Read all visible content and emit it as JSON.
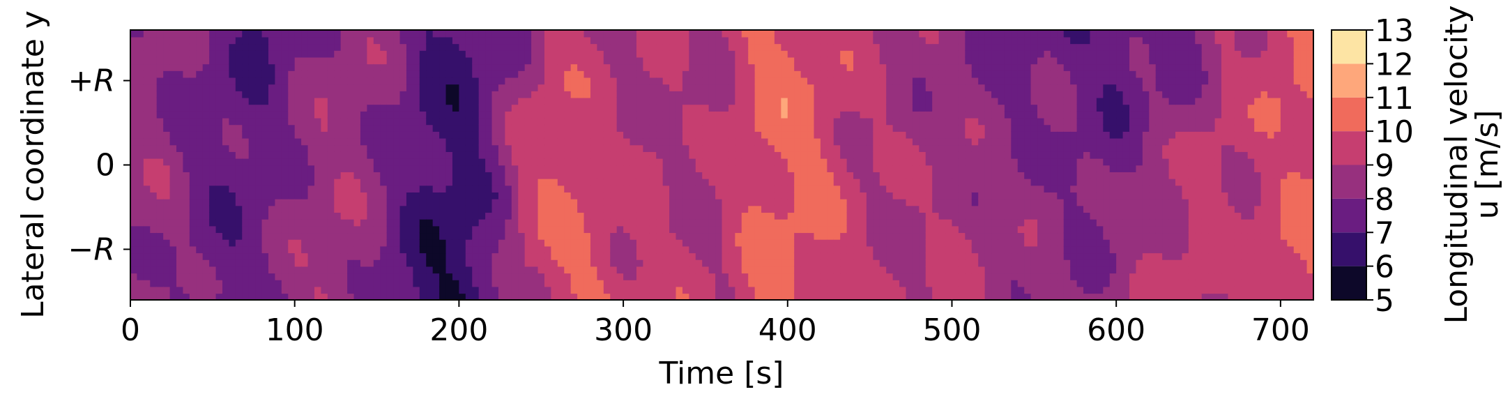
{
  "chart_data": {
    "type": "heatmap",
    "xlabel": "Time [s]",
    "ylabel": "Lateral coordinate y",
    "xlim": [
      0,
      720
    ],
    "xticks": [
      0,
      100,
      200,
      300,
      400,
      500,
      600,
      700
    ],
    "ytick_labels": [
      "+R",
      "0",
      "−R"
    ],
    "ytick_values": [
      1,
      0,
      -1
    ],
    "ylim": [
      -1.6,
      1.6
    ],
    "colorbar": {
      "label_line1": "Longitudinal velocity",
      "label_line2": "u [m/s]",
      "levels": [
        5,
        6,
        7,
        8,
        9,
        10,
        11,
        12,
        13
      ],
      "colors": [
        "#0d0829",
        "#36106b",
        "#6a1d81",
        "#97307e",
        "#c63e70",
        "#f06b5c",
        "#fea77b",
        "#fde4a4"
      ]
    },
    "columns": [
      {
        "t": 0,
        "top": 8.4,
        "mid": 8.6,
        "bot": 8.1
      },
      {
        "t": 20,
        "top": 8.2,
        "mid": 8.5,
        "bot": 8.3
      },
      {
        "t": 40,
        "top": 7.8,
        "mid": 7.6,
        "bot": 7.7
      },
      {
        "t": 60,
        "top": 7.5,
        "mid": 7.4,
        "bot": 7.2
      },
      {
        "t": 80,
        "top": 6.8,
        "mid": 7.5,
        "bot": 7.8
      },
      {
        "t": 100,
        "top": 7.6,
        "mid": 8.2,
        "bot": 8.5
      },
      {
        "t": 120,
        "top": 8.3,
        "mid": 8.8,
        "bot": 9.2
      },
      {
        "t": 140,
        "top": 8.7,
        "mid": 8.5,
        "bot": 8.4
      },
      {
        "t": 160,
        "top": 8.2,
        "mid": 7.8,
        "bot": 7.4
      },
      {
        "t": 180,
        "top": 7.1,
        "mid": 6.8,
        "bot": 6.2
      },
      {
        "t": 200,
        "top": 6.5,
        "mid": 6.6,
        "bot": 5.9
      },
      {
        "t": 220,
        "top": 7.4,
        "mid": 7.6,
        "bot": 7.3
      },
      {
        "t": 240,
        "top": 8.3,
        "mid": 9.6,
        "bot": 9.1
      },
      {
        "t": 260,
        "top": 9.4,
        "mid": 10.2,
        "bot": 9.8
      },
      {
        "t": 280,
        "top": 9.1,
        "mid": 9.5,
        "bot": 10.3
      },
      {
        "t": 300,
        "top": 8.8,
        "mid": 9.0,
        "bot": 9.6
      },
      {
        "t": 320,
        "top": 8.7,
        "mid": 9.2,
        "bot": 9.4
      },
      {
        "t": 340,
        "top": 9.0,
        "mid": 8.6,
        "bot": 9.3
      },
      {
        "t": 360,
        "top": 8.9,
        "mid": 9.1,
        "bot": 9.0
      },
      {
        "t": 380,
        "top": 10.1,
        "mid": 10.0,
        "bot": 10.2
      },
      {
        "t": 400,
        "top": 10.4,
        "mid": 10.3,
        "bot": 10.1
      },
      {
        "t": 420,
        "top": 9.8,
        "mid": 10.2,
        "bot": 9.9
      },
      {
        "t": 440,
        "top": 9.3,
        "mid": 9.1,
        "bot": 9.5
      },
      {
        "t": 460,
        "top": 8.8,
        "mid": 8.9,
        "bot": 9.2
      },
      {
        "t": 480,
        "top": 8.5,
        "mid": 8.7,
        "bot": 8.9
      },
      {
        "t": 500,
        "top": 8.2,
        "mid": 8.9,
        "bot": 9.3
      },
      {
        "t": 520,
        "top": 7.8,
        "mid": 8.4,
        "bot": 9.0
      },
      {
        "t": 540,
        "top": 7.4,
        "mid": 8.1,
        "bot": 8.6
      },
      {
        "t": 560,
        "top": 7.6,
        "mid": 8.3,
        "bot": 8.4
      },
      {
        "t": 580,
        "top": 7.3,
        "mid": 7.8,
        "bot": 8.2
      },
      {
        "t": 600,
        "top": 7.0,
        "mid": 7.6,
        "bot": 8.6
      },
      {
        "t": 620,
        "top": 7.5,
        "mid": 8.4,
        "bot": 9.1
      },
      {
        "t": 640,
        "top": 7.2,
        "mid": 8.8,
        "bot": 9.6
      },
      {
        "t": 660,
        "top": 8.6,
        "mid": 9.4,
        "bot": 9.2
      },
      {
        "t": 680,
        "top": 9.1,
        "mid": 9.3,
        "bot": 8.9
      },
      {
        "t": 700,
        "top": 10.3,
        "mid": 9.6,
        "bot": 10.4
      },
      {
        "t": 720,
        "top": 10.2,
        "mid": 10.0,
        "bot": 10.3
      }
    ]
  }
}
